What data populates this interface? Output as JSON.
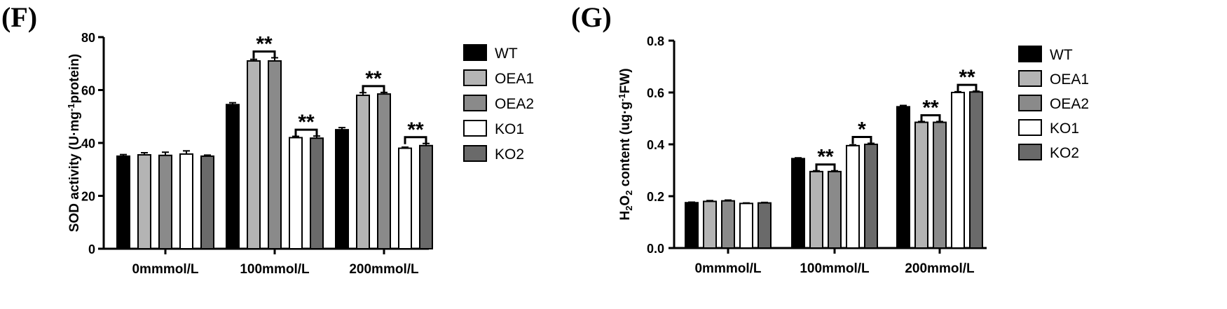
{
  "chart_data": [
    {
      "panel": "(F)",
      "type": "bar",
      "title": "",
      "xlabel": "",
      "ylabel": "SOD activity (U·mg",
      "ylabel_sup": "-1",
      "ylabel_tail": "protein)",
      "ylim": [
        0,
        80
      ],
      "yticks": [
        "0",
        "20",
        "40",
        "60",
        "80"
      ],
      "categories": [
        "0mmmol/L",
        "100mmol/L",
        "200mmol/L"
      ],
      "series": [
        {
          "name": "WT",
          "values": [
            35,
            54.5,
            45
          ],
          "errors": [
            0.6,
            0.7,
            0.8
          ],
          "color": "#000000"
        },
        {
          "name": "OEA1",
          "values": [
            35.5,
            71,
            58
          ],
          "errors": [
            0.8,
            0.6,
            1.0
          ],
          "color": "#b4b4b4"
        },
        {
          "name": "OEA2",
          "values": [
            35.3,
            71,
            58.5
          ],
          "errors": [
            1.2,
            1.2,
            0.6
          ],
          "color": "#8a8a8a"
        },
        {
          "name": "KO1",
          "values": [
            35.8,
            42,
            38
          ],
          "errors": [
            1.2,
            0.5,
            0.4
          ],
          "color": "#ffffff"
        },
        {
          "name": "KO2",
          "values": [
            35,
            41.8,
            39
          ],
          "errors": [
            0.4,
            0.8,
            0.8
          ],
          "color": "#6a6a6a"
        }
      ],
      "significance": [
        {
          "category": 1,
          "from": "OEA1",
          "to": "OEA2",
          "label": "**"
        },
        {
          "category": 1,
          "from": "KO1",
          "to": "KO2",
          "label": "**"
        },
        {
          "category": 2,
          "from": "OEA1",
          "to": "OEA2",
          "label": "**"
        },
        {
          "category": 2,
          "from": "KO1",
          "to": "KO2",
          "label": "**"
        }
      ],
      "legend_position": "right"
    },
    {
      "panel": "(G)",
      "type": "bar",
      "title": "",
      "xlabel": "",
      "ylabel": "H2O2 content (ug·g-1FW)",
      "ylabel_parts": [
        "H",
        "2",
        "O",
        "2",
        " content (ug·g",
        "-1",
        "FW)"
      ],
      "ylim": [
        0,
        0.8
      ],
      "yticks": [
        "0.0",
        "0.2",
        "0.4",
        "0.6",
        "0.8"
      ],
      "categories": [
        "0mmmol/L",
        "100mmol/L",
        "200mmol/L"
      ],
      "series": [
        {
          "name": "WT",
          "values": [
            0.175,
            0.345,
            0.545
          ],
          "errors": [
            0.002,
            0.003,
            0.005
          ],
          "color": "#000000"
        },
        {
          "name": "OEA1",
          "values": [
            0.18,
            0.295,
            0.485
          ],
          "errors": [
            0.003,
            0.003,
            0.003
          ],
          "color": "#b4b4b4"
        },
        {
          "name": "OEA2",
          "values": [
            0.182,
            0.295,
            0.485
          ],
          "errors": [
            0.003,
            0.003,
            0.003
          ],
          "color": "#8a8a8a"
        },
        {
          "name": "KO1",
          "values": [
            0.172,
            0.395,
            0.6
          ],
          "errors": [
            0.002,
            0.003,
            0.003
          ],
          "color": "#ffffff"
        },
        {
          "name": "KO2",
          "values": [
            0.174,
            0.4,
            0.602
          ],
          "errors": [
            0.002,
            0.004,
            0.003
          ],
          "color": "#6a6a6a"
        }
      ],
      "significance": [
        {
          "category": 1,
          "from": "OEA1",
          "to": "OEA2",
          "label": "**"
        },
        {
          "category": 1,
          "from": "KO1",
          "to": "KO2",
          "label": "*"
        },
        {
          "category": 2,
          "from": "OEA1",
          "to": "OEA2",
          "label": "**"
        },
        {
          "category": 2,
          "from": "KO1",
          "to": "KO2",
          "label": "**"
        }
      ],
      "legend_position": "right"
    }
  ]
}
